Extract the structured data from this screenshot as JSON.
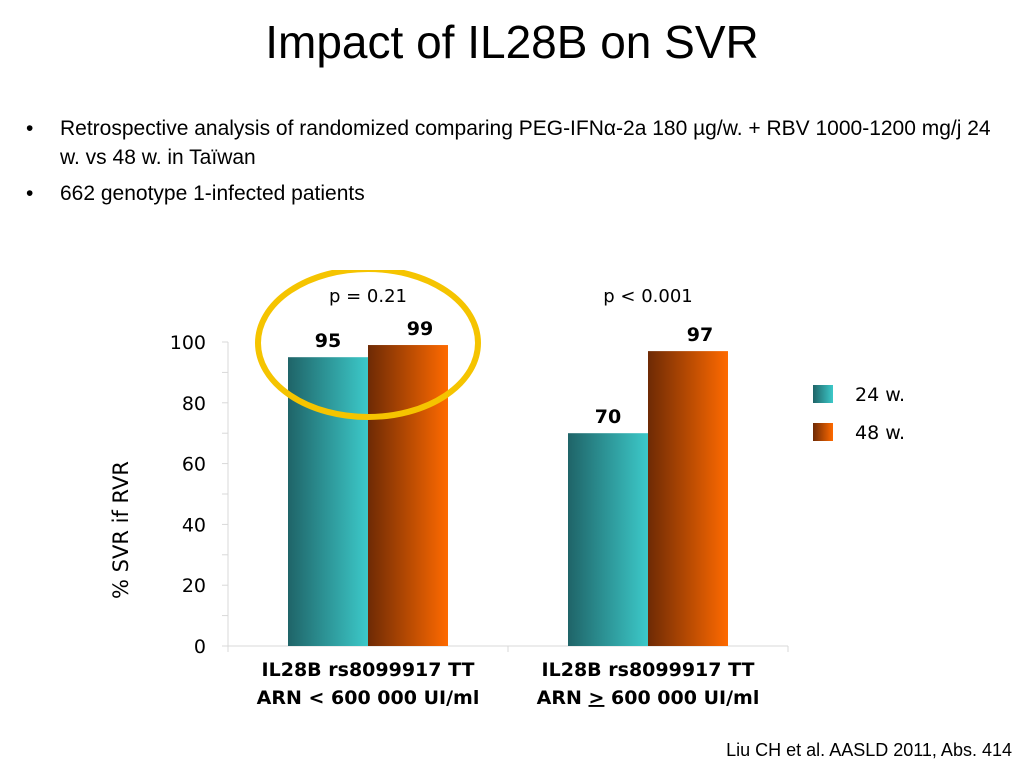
{
  "slide": {
    "title": "Impact of IL28B on SVR",
    "bullets": [
      "Retrospective analysis of randomized comparing PEG-IFNα-2a 180 µg/w. + RBV 1000-1200 mg/j 24 w. vs 48 w. in Taïwan",
      "662 genotype 1-infected patients"
    ],
    "bullet_glyph": "•",
    "citation": "Liu CH et al.  AASLD 2011, Abs. 414"
  },
  "chart_data": {
    "type": "bar",
    "title": "",
    "xlabel": "",
    "ylabel": "% SVR if RVR",
    "ylim": [
      0,
      100
    ],
    "yticks": [
      0,
      20,
      40,
      60,
      80,
      100
    ],
    "grid": false,
    "legend_position": "right",
    "categories": [
      {
        "line1": "IL28B rs8099917 TT",
        "line2_prefix": "ARN ",
        "line2_symbol": "<",
        "line2_suffix": " 600 000 UI/ml",
        "symbol_underlined": false
      },
      {
        "line1": "IL28B rs8099917 TT",
        "line2_prefix": "ARN ",
        "line2_symbol": ">",
        "line2_suffix": " 600 000 UI/ml",
        "symbol_underlined": true
      }
    ],
    "series": [
      {
        "name": "24 w.",
        "values": [
          95,
          70
        ],
        "color_dark": "#1f6468",
        "color_light": "#3cc9c9"
      },
      {
        "name": "48 w.",
        "values": [
          99,
          97
        ],
        "color_dark": "#6e2a05",
        "color_light": "#ff6a00"
      }
    ],
    "data_labels": [
      "95",
      "70",
      "99",
      "97"
    ],
    "p_values": [
      "p = 0.21",
      "p < 0.001"
    ],
    "highlight": {
      "category_index": 0,
      "color": "#f5c400"
    }
  }
}
